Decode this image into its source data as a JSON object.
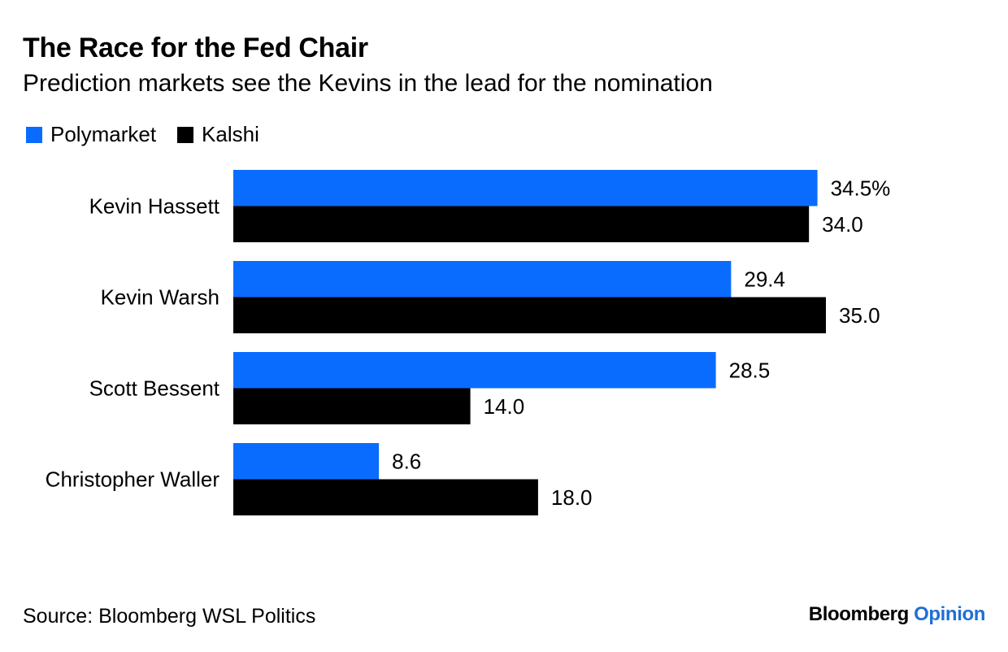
{
  "title": "The Race for the Fed Chair",
  "subtitle": "Prediction markets see the Kevins in the lead for the nomination",
  "source": "Source: Bloomberg WSL Politics",
  "brand": {
    "part1": "Bloomberg",
    "part2": "Opinion"
  },
  "colors": {
    "polymarket": "#0a6cff",
    "kalshi": "#000000",
    "brand_accent": "#1f6fd6"
  },
  "chart_data": {
    "type": "bar",
    "orientation": "horizontal",
    "categories": [
      "Kevin Hassett",
      "Kevin Warsh",
      "Scott Bessent",
      "Christopher Waller"
    ],
    "series": [
      {
        "name": "Polymarket",
        "values": [
          34.5,
          29.4,
          28.5,
          8.6
        ],
        "labels": [
          "34.5%",
          "29.4",
          "28.5",
          "8.6"
        ]
      },
      {
        "name": "Kalshi",
        "values": [
          34.0,
          35.0,
          14.0,
          18.0
        ],
        "labels": [
          "34.0",
          "35.0",
          "14.0",
          "18.0"
        ]
      }
    ],
    "xlim": [
      0,
      35
    ],
    "grid": false,
    "legend_position": "top-left"
  }
}
